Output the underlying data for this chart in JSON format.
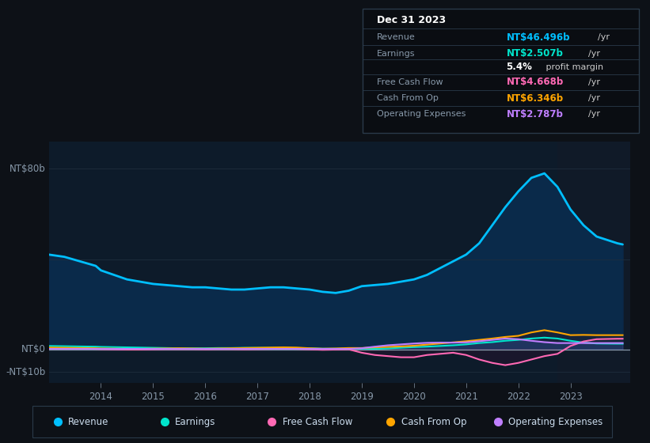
{
  "bg_color": "#0d1117",
  "chart_bg": "#0d1b2a",
  "tooltip_bg": "#0a0d12",
  "tooltip_border": "#2a3a4a",
  "ylim": [
    -15,
    92
  ],
  "years": [
    2013.0,
    2013.3,
    2013.6,
    2013.9,
    2014.0,
    2014.25,
    2014.5,
    2014.75,
    2015.0,
    2015.25,
    2015.5,
    2015.75,
    2016.0,
    2016.25,
    2016.5,
    2016.75,
    2017.0,
    2017.25,
    2017.5,
    2017.75,
    2018.0,
    2018.25,
    2018.5,
    2018.75,
    2019.0,
    2019.25,
    2019.5,
    2019.75,
    2020.0,
    2020.25,
    2020.5,
    2020.75,
    2021.0,
    2021.25,
    2021.5,
    2021.75,
    2022.0,
    2022.25,
    2022.5,
    2022.75,
    2023.0,
    2023.25,
    2023.5,
    2023.9,
    2024.0
  ],
  "revenue": [
    42,
    41,
    39,
    37,
    35,
    33,
    31,
    30,
    29,
    28.5,
    28,
    27.5,
    27.5,
    27,
    26.5,
    26.5,
    27,
    27.5,
    27.5,
    27,
    26.5,
    25.5,
    25,
    26,
    28,
    28.5,
    29,
    30,
    31,
    33,
    36,
    39,
    42,
    47,
    55,
    63,
    70,
    76,
    78,
    72,
    62,
    55,
    50,
    47,
    46.5
  ],
  "earnings": [
    1.5,
    1.4,
    1.3,
    1.2,
    1.1,
    1.0,
    0.9,
    0.8,
    0.7,
    0.6,
    0.5,
    0.5,
    0.5,
    0.6,
    0.6,
    0.7,
    0.7,
    0.7,
    0.7,
    0.6,
    0.5,
    0.3,
    0.3,
    0.4,
    0.3,
    0.2,
    0.4,
    0.7,
    1.0,
    1.2,
    1.5,
    1.8,
    2.2,
    2.8,
    3.2,
    3.8,
    4.2,
    4.8,
    5.2,
    4.8,
    3.8,
    3.0,
    2.6,
    2.5,
    2.5
  ],
  "free_cash_flow": [
    0.5,
    0.4,
    0.3,
    0.2,
    0.1,
    0.0,
    -0.1,
    -0.1,
    0.0,
    0.1,
    0.1,
    0.1,
    0.0,
    0.1,
    0.1,
    0.0,
    0.1,
    0.2,
    0.3,
    0.2,
    0.0,
    -0.2,
    -0.1,
    0.0,
    -1.5,
    -2.5,
    -3.0,
    -3.5,
    -3.5,
    -2.5,
    -2.0,
    -1.5,
    -2.5,
    -4.5,
    -6.0,
    -7.0,
    -6.0,
    -4.5,
    -3.0,
    -2.0,
    1.5,
    3.5,
    4.5,
    4.7,
    4.7
  ],
  "cash_from_op": [
    0.8,
    0.7,
    0.6,
    0.5,
    0.4,
    0.3,
    0.2,
    0.2,
    0.3,
    0.4,
    0.5,
    0.4,
    0.3,
    0.4,
    0.5,
    0.6,
    0.7,
    0.8,
    0.9,
    0.8,
    0.5,
    0.3,
    0.4,
    0.6,
    0.6,
    0.9,
    1.1,
    1.3,
    1.6,
    2.1,
    2.6,
    3.1,
    3.6,
    4.2,
    4.8,
    5.5,
    6.0,
    7.5,
    8.5,
    7.5,
    6.3,
    6.4,
    6.3,
    6.3,
    6.3
  ],
  "op_expenses": [
    0.2,
    0.2,
    0.2,
    0.2,
    0.2,
    0.2,
    0.2,
    0.2,
    0.2,
    0.2,
    0.2,
    0.2,
    0.2,
    0.2,
    0.2,
    0.2,
    0.2,
    0.2,
    0.2,
    0.2,
    0.2,
    0.2,
    0.2,
    0.2,
    0.5,
    1.2,
    1.8,
    2.2,
    2.6,
    2.9,
    3.0,
    3.0,
    3.1,
    3.6,
    4.2,
    4.8,
    4.5,
    3.8,
    3.2,
    2.8,
    2.8,
    2.8,
    2.8,
    2.8,
    2.8
  ],
  "revenue_color": "#00bfff",
  "earnings_color": "#00e5cc",
  "fcf_color": "#ff69b4",
  "cfop_color": "#ffa500",
  "opex_color": "#bf7fff",
  "ylabel_top": "NT$80b",
  "ylabel_mid": "NT$0",
  "ylabel_bot": "-NT$10b",
  "xtick_years": [
    2014,
    2015,
    2016,
    2017,
    2018,
    2019,
    2020,
    2021,
    2022,
    2023
  ],
  "legend": [
    {
      "label": "Revenue",
      "color": "#00bfff"
    },
    {
      "label": "Earnings",
      "color": "#00e5cc"
    },
    {
      "label": "Free Cash Flow",
      "color": "#ff69b4"
    },
    {
      "label": "Cash From Op",
      "color": "#ffa500"
    },
    {
      "label": "Operating Expenses",
      "color": "#bf7fff"
    }
  ],
  "tooltip_date": "Dec 31 2023",
  "tooltip_rows": [
    {
      "label": "Revenue",
      "value": "NT$46.496b",
      "unit": "/yr",
      "color": "#00bfff",
      "is_subrow": false
    },
    {
      "label": "Earnings",
      "value": "NT$2.507b",
      "unit": "/yr",
      "color": "#00e5cc",
      "is_subrow": false
    },
    {
      "label": "",
      "value": "5.4%",
      "unit": " profit margin",
      "color": "#ffffff",
      "is_subrow": true
    },
    {
      "label": "Free Cash Flow",
      "value": "NT$4.668b",
      "unit": "/yr",
      "color": "#ff69b4",
      "is_subrow": false
    },
    {
      "label": "Cash From Op",
      "value": "NT$6.346b",
      "unit": "/yr",
      "color": "#ffa500",
      "is_subrow": false
    },
    {
      "label": "Operating Expenses",
      "value": "NT$2.787b",
      "unit": "/yr",
      "color": "#bf7fff",
      "is_subrow": false
    }
  ]
}
